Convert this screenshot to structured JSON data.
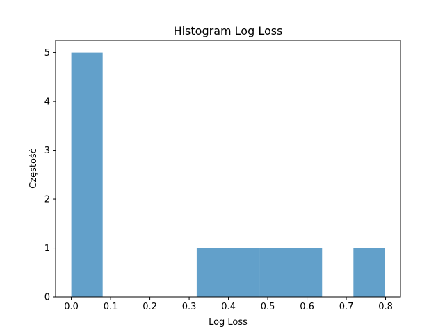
{
  "chart_data": {
    "type": "histogram",
    "title": "Histogram Log Loss",
    "xlabel": "Log Loss",
    "ylabel": "Częstość",
    "xlim": [
      -0.04,
      0.838
    ],
    "ylim": [
      0,
      5.25
    ],
    "xticks": [
      0.0,
      0.1,
      0.2,
      0.3,
      0.4,
      0.5,
      0.6,
      0.7,
      0.8
    ],
    "xtick_labels": [
      "0.0",
      "0.1",
      "0.2",
      "0.3",
      "0.4",
      "0.5",
      "0.6",
      "0.7",
      "0.8"
    ],
    "yticks": [
      0,
      1,
      2,
      3,
      4,
      5
    ],
    "ytick_labels": [
      "0",
      "1",
      "2",
      "3",
      "4",
      "5"
    ],
    "grid": false,
    "bar_color": "#1f77b4",
    "bar_alpha": 0.7,
    "bins": [
      {
        "x0": 0.0,
        "x1": 0.0798,
        "count": 5
      },
      {
        "x0": 0.0798,
        "x1": 0.1596,
        "count": 0
      },
      {
        "x0": 0.1596,
        "x1": 0.2394,
        "count": 0
      },
      {
        "x0": 0.2394,
        "x1": 0.3192,
        "count": 0
      },
      {
        "x0": 0.3192,
        "x1": 0.399,
        "count": 1
      },
      {
        "x0": 0.399,
        "x1": 0.4788,
        "count": 1
      },
      {
        "x0": 0.4788,
        "x1": 0.5586,
        "count": 1
      },
      {
        "x0": 0.5586,
        "x1": 0.6384,
        "count": 1
      },
      {
        "x0": 0.6384,
        "x1": 0.7182,
        "count": 0
      },
      {
        "x0": 0.7182,
        "x1": 0.798,
        "count": 1
      }
    ]
  }
}
